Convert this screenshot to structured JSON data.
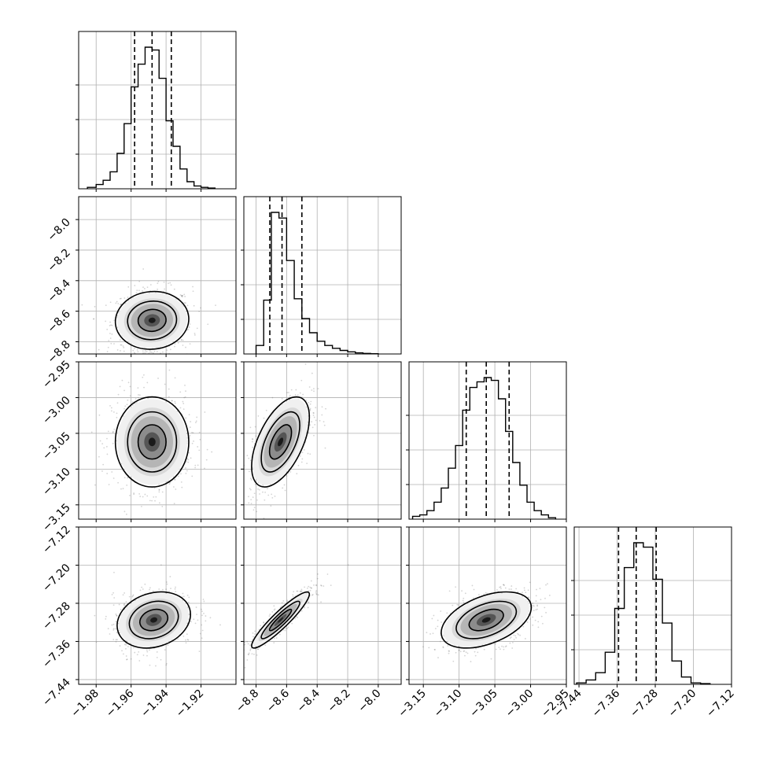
{
  "figure": {
    "kind": "corner-plot",
    "grid": true,
    "colors": {
      "line": "#000000",
      "grid": "#b0b0b0",
      "scatter": "#555555"
    }
  },
  "chart_data": {
    "type": "scatter",
    "variables": [
      {
        "range": [
          -1.99,
          -1.9
        ],
        "ticks": [
          -1.98,
          -1.96,
          -1.94,
          -1.92
        ],
        "tick_labels": [
          "−1.98",
          "−1.96",
          "−1.94",
          "−1.92"
        ]
      },
      {
        "range": [
          -8.88,
          -7.85
        ],
        "ticks": [
          -8.8,
          -8.6,
          -8.4,
          -8.2,
          -8.0
        ],
        "tick_labels": [
          "−8.8",
          "−8.6",
          "−8.4",
          "−8.2",
          "−8.0"
        ]
      },
      {
        "range": [
          -3.17,
          -2.95
        ],
        "ticks": [
          -3.15,
          -3.1,
          -3.05,
          -3.0,
          -2.95
        ],
        "tick_labels": [
          "−3.15",
          "−3.10",
          "−3.05",
          "−3.00",
          "−2.95"
        ]
      },
      {
        "range": [
          -7.45,
          -7.12
        ],
        "ticks": [
          -7.44,
          -7.36,
          -7.28,
          -7.2,
          -7.12
        ],
        "tick_labels": [
          "−7.44",
          "−7.36",
          "−7.28",
          "−7.20",
          "−7.12"
        ]
      }
    ],
    "diagonal": [
      {
        "edges": [
          -1.985,
          -1.98,
          -1.976,
          -1.972,
          -1.968,
          -1.964,
          -1.96,
          -1.956,
          -1.952,
          -1.948,
          -1.944,
          -1.94,
          -1.936,
          -1.932,
          -1.928,
          -1.924,
          -1.92,
          -1.916,
          -1.912
        ],
        "heights": [
          0.01,
          0.03,
          0.06,
          0.12,
          0.25,
          0.46,
          0.72,
          0.88,
          1.0,
          0.98,
          0.78,
          0.48,
          0.3,
          0.14,
          0.05,
          0.02,
          0.01,
          0.005
        ],
        "quantiles": [
          -1.958,
          -1.948,
          -1.937
        ]
      },
      {
        "edges": [
          -8.8,
          -8.75,
          -8.7,
          -8.65,
          -8.6,
          -8.55,
          -8.5,
          -8.45,
          -8.4,
          -8.35,
          -8.3,
          -8.25,
          -8.2,
          -8.15,
          -8.1,
          -8.05,
          -8.0
        ],
        "heights": [
          0.06,
          0.38,
          1.0,
          0.96,
          0.66,
          0.39,
          0.25,
          0.15,
          0.09,
          0.06,
          0.04,
          0.025,
          0.015,
          0.008,
          0.004,
          0.002
        ],
        "quantiles": [
          -8.71,
          -8.63,
          -8.5
        ]
      },
      {
        "edges": [
          -3.165,
          -3.155,
          -3.145,
          -3.135,
          -3.125,
          -3.115,
          -3.105,
          -3.095,
          -3.085,
          -3.075,
          -3.065,
          -3.055,
          -3.045,
          -3.035,
          -3.025,
          -3.015,
          -3.005,
          -2.995,
          -2.985,
          -2.975,
          -2.965
        ],
        "heights": [
          0.02,
          0.03,
          0.06,
          0.12,
          0.22,
          0.36,
          0.52,
          0.77,
          0.93,
          0.97,
          1.0,
          0.98,
          0.85,
          0.62,
          0.4,
          0.24,
          0.12,
          0.06,
          0.03,
          0.01
        ],
        "quantiles": [
          -3.09,
          -3.062,
          -3.03
        ]
      },
      {
        "edges": [
          -7.445,
          -7.425,
          -7.405,
          -7.385,
          -7.365,
          -7.345,
          -7.325,
          -7.305,
          -7.285,
          -7.265,
          -7.245,
          -7.225,
          -7.205,
          -7.185,
          -7.165
        ],
        "heights": [
          0.01,
          0.03,
          0.08,
          0.22,
          0.52,
          0.8,
          0.97,
          0.94,
          0.72,
          0.42,
          0.16,
          0.05,
          0.01,
          0.005
        ],
        "quantiles": [
          -7.357,
          -7.32,
          -7.278
        ]
      }
    ],
    "pairs": [
      {
        "x": 0,
        "y": 1,
        "mean": [
          -1.948,
          -8.66
        ],
        "sd": [
          0.01,
          0.09
        ],
        "corr": 0.05,
        "skew_y": 1
      },
      {
        "x": 0,
        "y": 2,
        "mean": [
          -1.948,
          -3.062
        ],
        "sd": [
          0.01,
          0.03
        ],
        "corr": 0.0,
        "skew_y": 0
      },
      {
        "x": 1,
        "y": 2,
        "mean": [
          -8.64,
          -3.062
        ],
        "sd": [
          0.09,
          0.03
        ],
        "corr": 0.55,
        "skew_y": 0
      },
      {
        "x": 0,
        "y": 3,
        "mean": [
          -1.947,
          -7.315
        ],
        "sd": [
          0.01,
          0.028
        ],
        "corr": 0.2,
        "skew_y": 0
      },
      {
        "x": 1,
        "y": 3,
        "mean": [
          -8.64,
          -7.315
        ],
        "sd": [
          0.09,
          0.028
        ],
        "corr": 0.92,
        "skew_y": 0
      },
      {
        "x": 2,
        "y": 3,
        "mean": [
          -3.062,
          -7.315
        ],
        "sd": [
          0.03,
          0.028
        ],
        "corr": 0.45,
        "skew_y": 0
      }
    ]
  }
}
